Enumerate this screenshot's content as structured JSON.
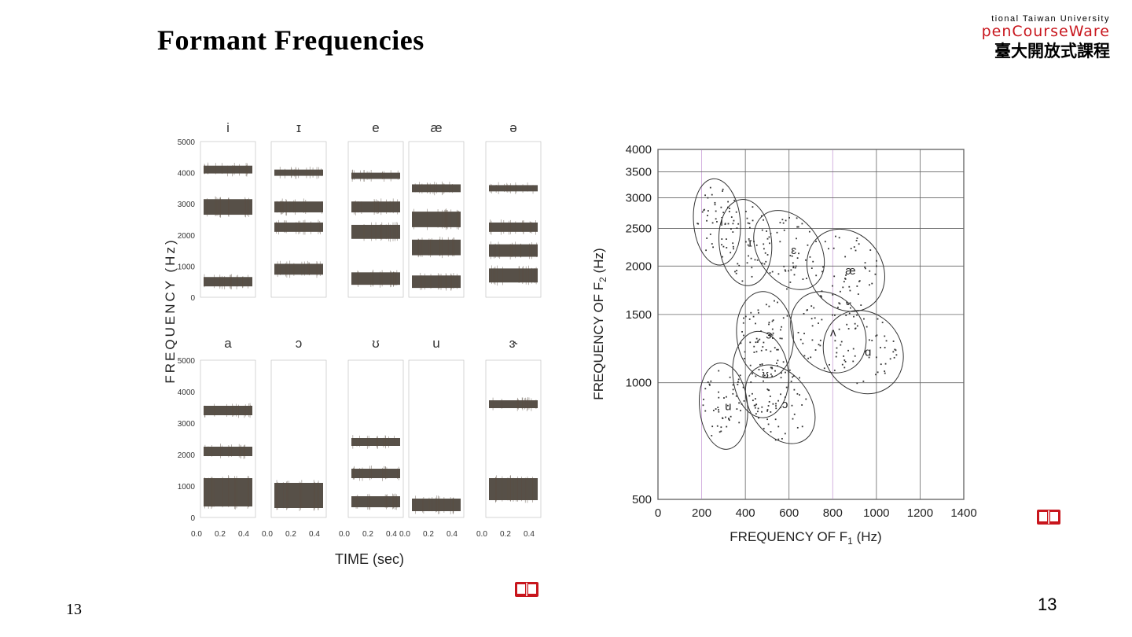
{
  "slide": {
    "title": "Formant Frequencies",
    "page_number_left": "13",
    "page_number_right": "13"
  },
  "logo": {
    "line1": "tional Taiwan University",
    "line2": "penCourseWare",
    "line3": "臺大開放式課程"
  },
  "icons": [
    "book-icon"
  ],
  "spectrograms": {
    "y_axis_label": "FREQUENCY (Hz)",
    "x_axis_label": "TIME (sec)",
    "y_ticks": [
      "5000",
      "4000",
      "3000",
      "2000",
      "1000",
      "0"
    ],
    "x_ticks": [
      "0.0",
      "0.2",
      "0.4"
    ],
    "top_row_vowels": [
      "i",
      "ɪ",
      "e",
      "æ",
      "ə"
    ],
    "bottom_row_vowels": [
      "a",
      "ɔ",
      "ʊ",
      "u",
      "ɝ"
    ]
  },
  "chart_data": {
    "type": "scatter",
    "title": "",
    "xlabel": "FREQUENCY OF F1 (Hz)",
    "ylabel": "FREQUENCY OF F2 (Hz)",
    "xlim": [
      0,
      1400
    ],
    "ylim": [
      500,
      4000
    ],
    "y_scale": "log",
    "grid": true,
    "x_ticks": [
      "0",
      "200",
      "400",
      "600",
      "800",
      "1000",
      "1200",
      "1400"
    ],
    "y_ticks": [
      "500",
      "1000",
      "1500",
      "2000",
      "2500",
      "3000",
      "3500",
      "4000"
    ],
    "vowel_regions": [
      {
        "label": "i",
        "f1": 270,
        "f2": 2600
      },
      {
        "label": "ɪ",
        "f1": 400,
        "f2": 2300
      },
      {
        "label": "ɛ",
        "f1": 600,
        "f2": 2200
      },
      {
        "label": "æ",
        "f1": 860,
        "f2": 1950
      },
      {
        "label": "ʌ",
        "f1": 780,
        "f2": 1350
      },
      {
        "label": "ɑ",
        "f1": 940,
        "f2": 1200
      },
      {
        "label": "ɔ",
        "f1": 560,
        "f2": 880
      },
      {
        "label": "ʊ",
        "f1": 470,
        "f2": 1050
      },
      {
        "label": "u",
        "f1": 300,
        "f2": 870
      },
      {
        "label": "ɝ",
        "f1": 490,
        "f2": 1330
      }
    ]
  }
}
